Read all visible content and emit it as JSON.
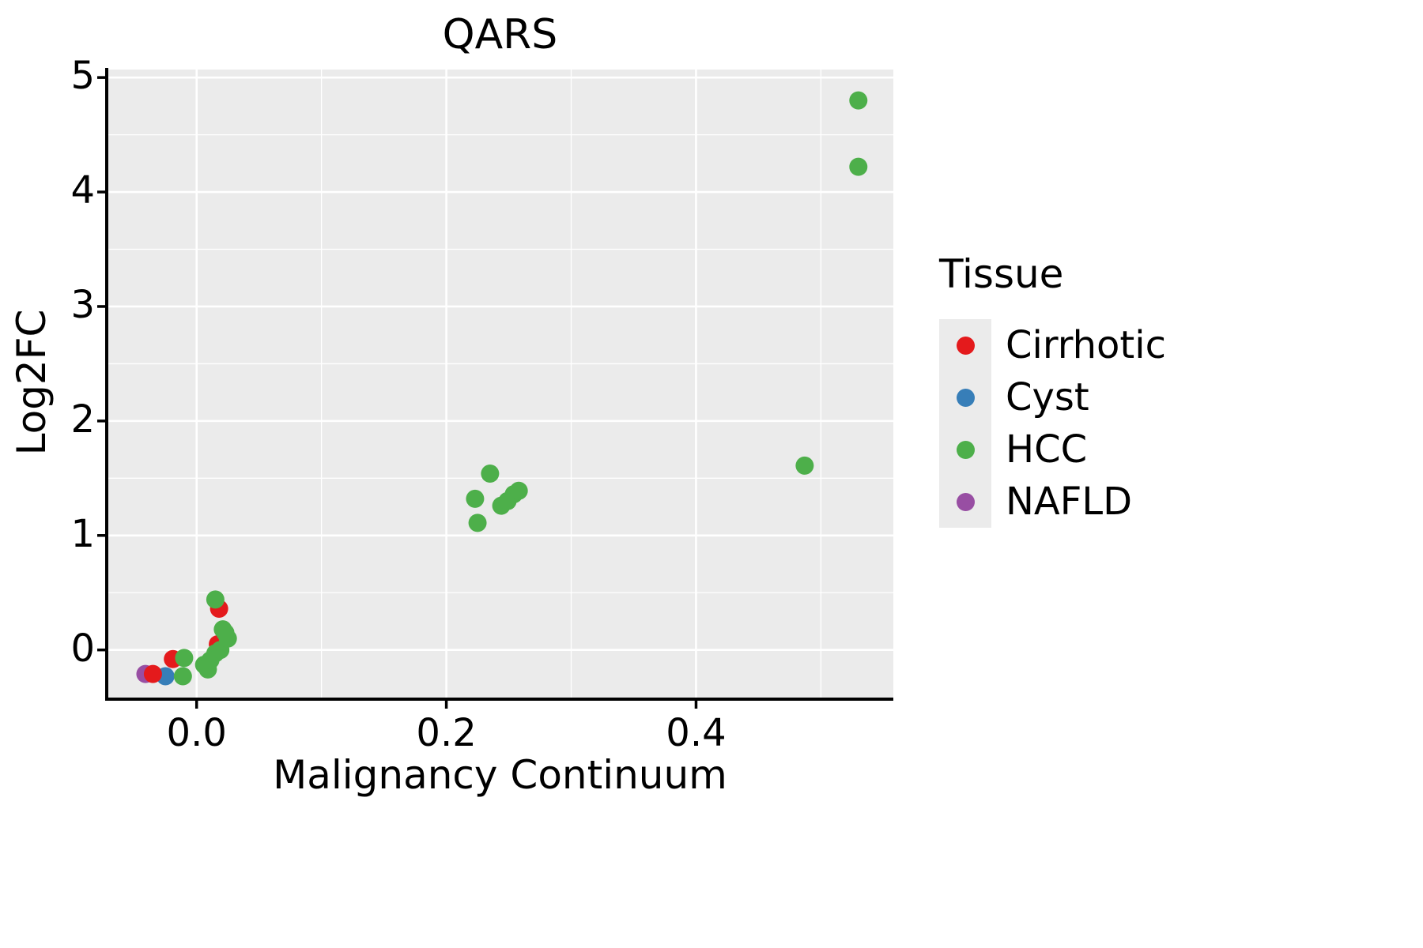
{
  "title": "QARS",
  "chart_data": {
    "type": "scatter",
    "title": "QARS",
    "xlabel": "Malignancy Continuum",
    "ylabel": "Log2FC",
    "xlim": [
      -0.072,
      0.558
    ],
    "ylim": [
      -0.43,
      5.07
    ],
    "x_ticks": [
      0.0,
      0.2,
      0.4
    ],
    "x_tick_labels": [
      "0.0",
      "0.2",
      "0.4"
    ],
    "y_ticks": [
      0,
      1,
      2,
      3,
      4,
      5
    ],
    "y_tick_labels": [
      "0",
      "1",
      "2",
      "3",
      "4",
      "5"
    ],
    "x_minor_ticks": [
      -0.1,
      0.1,
      0.3,
      0.5
    ],
    "y_minor_ticks": [
      -0.5,
      0.5,
      1.5,
      2.5,
      3.5,
      4.5
    ],
    "panel_bg": "#ebebeb",
    "grid_color": "#ffffff",
    "legend_position": "right",
    "legend": {
      "title": "Tissue",
      "entries": [
        {
          "label": "Cirrhotic",
          "color": "#e41a1c"
        },
        {
          "label": "Cyst",
          "color": "#377eb8"
        },
        {
          "label": "HCC",
          "color": "#4daf4a"
        },
        {
          "label": "NAFLD",
          "color": "#984ea3"
        }
      ]
    },
    "series": [
      {
        "name": "NAFLD",
        "color": "#984ea3",
        "points": [
          [
            -0.041,
            -0.21
          ]
        ]
      },
      {
        "name": "Cyst",
        "color": "#377eb8",
        "points": [
          [
            -0.025,
            -0.23
          ]
        ]
      },
      {
        "name": "Cirrhotic",
        "color": "#e41a1c",
        "points": [
          [
            -0.035,
            -0.21
          ],
          [
            -0.019,
            -0.08
          ],
          [
            0.017,
            0.05
          ],
          [
            0.018,
            0.36
          ]
        ]
      },
      {
        "name": "HCC",
        "color": "#4daf4a",
        "points": [
          [
            -0.011,
            -0.23
          ],
          [
            -0.01,
            -0.07
          ],
          [
            0.006,
            -0.13
          ],
          [
            0.009,
            -0.17
          ],
          [
            0.011,
            -0.09
          ],
          [
            0.015,
            -0.03
          ],
          [
            0.019,
            0.0
          ],
          [
            0.025,
            0.1
          ],
          [
            0.023,
            0.15
          ],
          [
            0.021,
            0.18
          ],
          [
            0.015,
            0.44
          ],
          [
            0.223,
            1.32
          ],
          [
            0.225,
            1.11
          ],
          [
            0.235,
            1.54
          ],
          [
            0.244,
            1.26
          ],
          [
            0.249,
            1.3
          ],
          [
            0.254,
            1.36
          ],
          [
            0.258,
            1.39
          ],
          [
            0.487,
            1.61
          ],
          [
            0.53,
            4.22
          ],
          [
            0.53,
            4.8
          ]
        ]
      }
    ]
  }
}
